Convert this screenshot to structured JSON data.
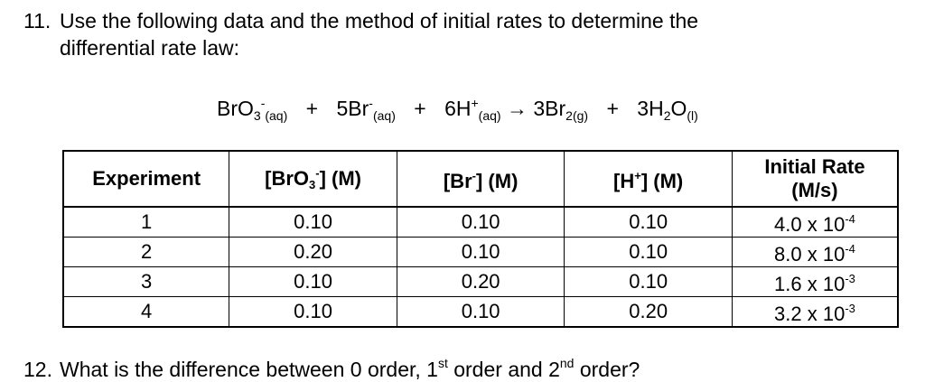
{
  "question11": {
    "number": "11.",
    "line1": "Use the following data and the method of initial rates to determine the",
    "line2": "differential rate law:"
  },
  "equation": {
    "r1": "BrO",
    "r1_sub": "3",
    "r1_sup": "-",
    "r1_state": "(aq)",
    "plus1": "+",
    "r2_coef": "5Br",
    "r2_sup": "-",
    "r2_state": "(aq)",
    "plus2": "+",
    "r3_coef": "6H",
    "r3_sup": "+",
    "r3_state": "(aq)",
    "arrow": "→",
    "p1": "3Br",
    "p1_sub": "2(g)",
    "plus3": "+",
    "p2_a": "3H",
    "p2_sub": "2",
    "p2_b": "O",
    "p2_state": "(l)"
  },
  "table": {
    "headers": {
      "experiment": "Experiment",
      "bro3_a": "[BrO",
      "bro3_sub": "3",
      "bro3_sup": "-",
      "bro3_b": "] (M)",
      "br_a": "[Br",
      "br_sup": "-",
      "br_b": "] (M)",
      "h_a": "[H",
      "h_sup": "+",
      "h_b": "] (M)",
      "rate_line1": "Initial Rate",
      "rate_line2": "(M/s)"
    },
    "rows": [
      {
        "exp": "1",
        "bro3": "0.10",
        "br": "0.10",
        "h": "0.10",
        "rate_base": "4.0 x 10",
        "rate_exp": "-4"
      },
      {
        "exp": "2",
        "bro3": "0.20",
        "br": "0.10",
        "h": "0.10",
        "rate_base": "8.0 x 10",
        "rate_exp": "-4"
      },
      {
        "exp": "3",
        "bro3": "0.10",
        "br": "0.20",
        "h": "0.10",
        "rate_base": "1.6 x 10",
        "rate_exp": "-3"
      },
      {
        "exp": "4",
        "bro3": "0.10",
        "br": "0.10",
        "h": "0.20",
        "rate_base": "3.2 x 10",
        "rate_exp": "-3"
      }
    ]
  },
  "question12": {
    "number": "12.",
    "text_a": "What is the difference between 0 order, 1",
    "sup1": "st",
    "text_b": " order and 2",
    "sup2": "nd",
    "text_c": " order?"
  }
}
